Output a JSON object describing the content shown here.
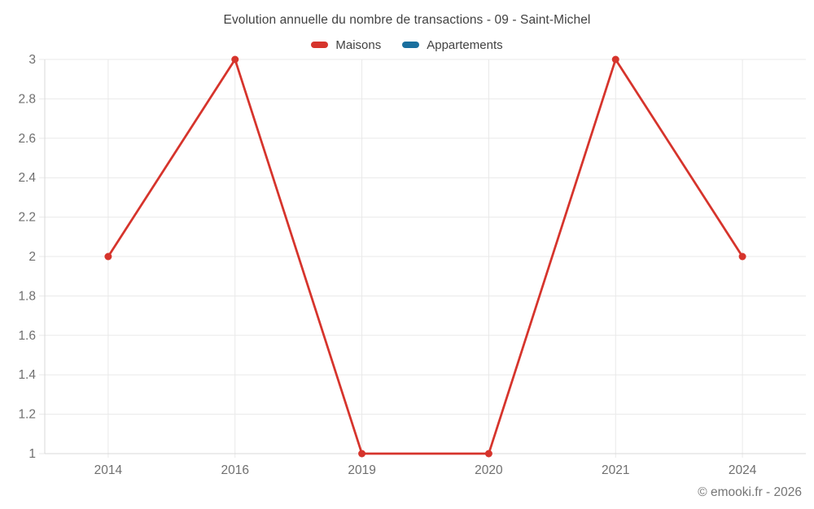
{
  "header": {
    "title": "Evolution annuelle du nombre de transactions - 09 - Saint-Michel"
  },
  "legend": {
    "items": [
      {
        "label": "Maisons",
        "color": "#d6342c"
      },
      {
        "label": "Appartements",
        "color": "#1a6f9e"
      }
    ]
  },
  "footer": {
    "credit": "© emooki.fr - 2026"
  },
  "chart_data": {
    "type": "line",
    "title": "Evolution annuelle du nombre de transactions - 09 - Saint-Michel",
    "categories": [
      "2014",
      "2016",
      "2019",
      "2020",
      "2021",
      "2024"
    ],
    "series": [
      {
        "name": "Maisons",
        "color": "#d6342c",
        "values": [
          2,
          3,
          1,
          1,
          3,
          2
        ]
      },
      {
        "name": "Appartements",
        "color": "#1a6f9e",
        "values": [
          null,
          null,
          null,
          null,
          null,
          null
        ]
      }
    ],
    "ylim": [
      1,
      3
    ],
    "yticks": [
      {
        "value": 1,
        "label": "1"
      },
      {
        "value": 1.2,
        "label": "1.2"
      },
      {
        "value": 1.4,
        "label": "1.4"
      },
      {
        "value": 1.6,
        "label": "1.6"
      },
      {
        "value": 1.8,
        "label": "1.8"
      },
      {
        "value": 2,
        "label": "2"
      },
      {
        "value": 2.2,
        "label": "2.2"
      },
      {
        "value": 2.4,
        "label": "2.4"
      },
      {
        "value": 2.6,
        "label": "2.6"
      },
      {
        "value": 2.8,
        "label": "2.8"
      },
      {
        "value": 3,
        "label": "3"
      }
    ],
    "xlabel": "",
    "ylabel": "",
    "grid": true,
    "legend_position": "top",
    "marker_radius": 4.5,
    "line_width": 2.75,
    "colors": {
      "grid": "#e9e9e9",
      "axis": "#d9d9d9",
      "tick_text": "#6f6f6f",
      "title_text": "#424242"
    }
  }
}
